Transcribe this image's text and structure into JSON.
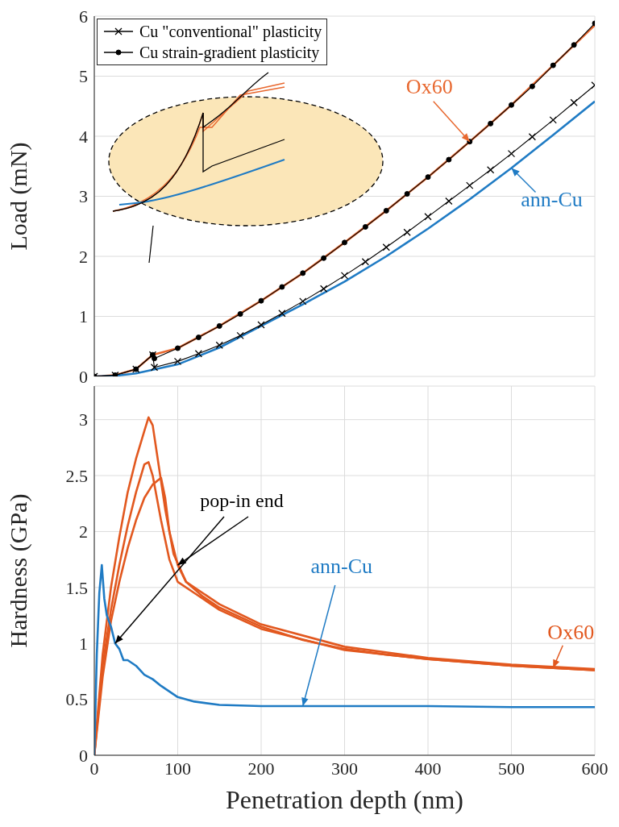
{
  "chart_data": [
    {
      "type": "line",
      "ylabel": "Load (mN)",
      "xlim": [
        0,
        600
      ],
      "xticks": [
        0,
        100,
        200,
        300,
        400,
        500,
        600
      ],
      "ylim": [
        0,
        6
      ],
      "yticks": [
        0,
        1,
        2,
        3,
        4,
        5,
        6
      ],
      "grid": true,
      "legend": "top left",
      "tick_labels": "y",
      "series": [
        {
          "name": "Ox60",
          "color": "#e8682f",
          "marker": "none",
          "x": [
            0,
            25,
            50,
            70,
            100,
            150,
            200,
            250,
            300,
            350,
            400,
            450,
            500,
            550,
            600
          ],
          "values": [
            0,
            0.02,
            0.12,
            0.36,
            0.47,
            0.84,
            1.26,
            1.72,
            2.23,
            2.76,
            3.32,
            3.91,
            4.52,
            5.18,
            5.85
          ]
        },
        {
          "name": "ann-Cu",
          "color": "#1f7bc4",
          "marker": "none",
          "x": [
            0,
            25,
            50,
            100,
            150,
            200,
            250,
            300,
            350,
            400,
            450,
            500,
            550,
            600
          ],
          "values": [
            0,
            0.01,
            0.05,
            0.2,
            0.48,
            0.84,
            1.2,
            1.58,
            2,
            2.46,
            2.95,
            3.47,
            4.02,
            4.58
          ]
        },
        {
          "name": "Cu \"conventional\" plasticity",
          "color": "#000000",
          "marker": "cross",
          "x": [
            0,
            25,
            50,
            70,
            72,
            100,
            125,
            150,
            175,
            200,
            225,
            250,
            275,
            300,
            325,
            350,
            375,
            400,
            425,
            450,
            475,
            500,
            525,
            550,
            575,
            600
          ],
          "values": [
            0,
            0.02,
            0.12,
            0.36,
            0.15,
            0.25,
            0.38,
            0.52,
            0.68,
            0.86,
            1.05,
            1.25,
            1.46,
            1.68,
            1.91,
            2.15,
            2.4,
            2.66,
            2.92,
            3.18,
            3.44,
            3.71,
            3.99,
            4.27,
            4.56,
            4.85
          ]
        },
        {
          "name": "Cu strain-gradient plasticity",
          "color": "#000000",
          "marker": "circle",
          "x": [
            0,
            25,
            50,
            70,
            72,
            100,
            125,
            150,
            175,
            200,
            225,
            250,
            275,
            300,
            325,
            350,
            375,
            400,
            425,
            450,
            475,
            500,
            525,
            550,
            575,
            600
          ],
          "values": [
            0,
            0.02,
            0.12,
            0.36,
            0.3,
            0.47,
            0.65,
            0.84,
            1.04,
            1.26,
            1.49,
            1.72,
            1.97,
            2.23,
            2.49,
            2.76,
            3.04,
            3.32,
            3.61,
            3.91,
            4.21,
            4.52,
            4.83,
            5.18,
            5.52,
            5.88
          ]
        }
      ]
    },
    {
      "type": "line",
      "xlabel": "Penetration depth (nm)",
      "ylabel": "Hardness (GPa)",
      "xlim": [
        0,
        600
      ],
      "xticks": [
        0,
        100,
        200,
        300,
        400,
        500,
        600
      ],
      "ylim": [
        0,
        3.3
      ],
      "yticks": [
        0,
        0.5,
        1,
        1.5,
        2,
        2.5,
        3
      ],
      "grid": true,
      "annotations": [
        {
          "text": "pop-in end",
          "x": 25,
          "y": 1
        }
      ],
      "series": [
        {
          "name": "Ox60",
          "color": "#e2581f",
          "marker": "none",
          "x": [
            0,
            10,
            20,
            30,
            40,
            50,
            60,
            65,
            70,
            75,
            85,
            95,
            110,
            130,
            150,
            200,
            250,
            300,
            350,
            400,
            450,
            500,
            550,
            600
          ],
          "values": [
            0,
            0.9,
            1.5,
            1.95,
            2.35,
            2.65,
            2.9,
            3.02,
            2.95,
            2.7,
            2.2,
            1.8,
            1.55,
            1.42,
            1.32,
            1.15,
            1.03,
            0.95,
            0.9,
            0.86,
            0.83,
            0.8,
            0.78,
            0.76
          ]
        },
        {
          "color": "#e2581f",
          "marker": "none",
          "x": [
            0,
            10,
            20,
            30,
            40,
            50,
            60,
            65,
            70,
            80,
            90,
            100,
            120,
            150,
            200,
            300,
            400,
            500,
            600
          ],
          "values": [
            0,
            0.8,
            1.3,
            1.7,
            2.05,
            2.35,
            2.6,
            2.62,
            2.5,
            2.1,
            1.75,
            1.55,
            1.45,
            1.3,
            1.13,
            0.94,
            0.86,
            0.8,
            0.76
          ]
        },
        {
          "color": "#e2581f",
          "marker": "none",
          "x": [
            0,
            10,
            20,
            30,
            40,
            50,
            60,
            70,
            80,
            85,
            90,
            100,
            110,
            150,
            200,
            300,
            400,
            500,
            600
          ],
          "values": [
            0,
            0.7,
            1.2,
            1.55,
            1.85,
            2.1,
            2.3,
            2.42,
            2.48,
            2.3,
            2,
            1.7,
            1.55,
            1.35,
            1.17,
            0.97,
            0.87,
            0.81,
            0.77
          ]
        },
        {
          "name": "ann-Cu",
          "color": "#1f7bc4",
          "marker": "none",
          "x": [
            0,
            3,
            6,
            9,
            12,
            15,
            20,
            25,
            30,
            35,
            40,
            50,
            60,
            70,
            80,
            100,
            120,
            150,
            200,
            250,
            300,
            400,
            500,
            600
          ],
          "values": [
            0,
            0.9,
            1.45,
            1.7,
            1.4,
            1.25,
            1.15,
            1,
            0.95,
            0.85,
            0.85,
            0.8,
            0.72,
            0.68,
            0.62,
            0.52,
            0.48,
            0.45,
            0.44,
            0.44,
            0.44,
            0.44,
            0.43,
            0.43
          ]
        }
      ]
    }
  ]
}
